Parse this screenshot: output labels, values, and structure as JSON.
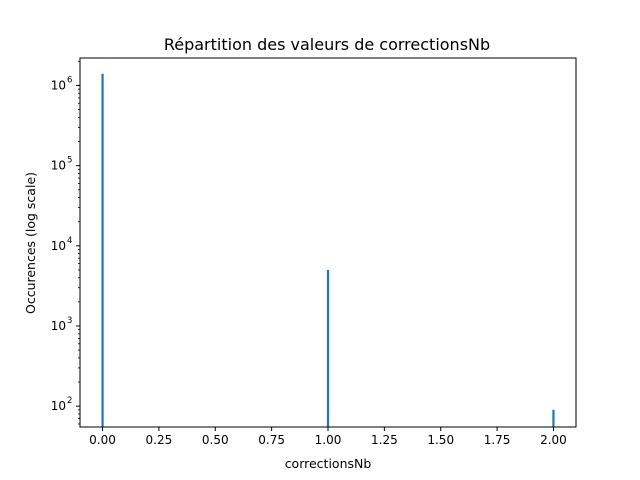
{
  "chart_data": {
    "type": "bar",
    "title": "Répartition des valeurs de correctionsNb",
    "xlabel": "correctionsNb",
    "ylabel": "Occurences (log scale)",
    "yscale": "log",
    "x": [
      0.0,
      1.0,
      2.0
    ],
    "values": [
      1400000,
      5000,
      90
    ],
    "xlim": [
      -0.1,
      2.1
    ],
    "ylim": [
      55,
      2200000
    ],
    "x_ticks": [
      "0.00",
      "0.25",
      "0.50",
      "0.75",
      "1.00",
      "1.25",
      "1.50",
      "1.75",
      "2.00"
    ],
    "y_ticks": [
      {
        "base": "10",
        "exp": "2",
        "value": 100
      },
      {
        "base": "10",
        "exp": "3",
        "value": 1000
      },
      {
        "base": "10",
        "exp": "4",
        "value": 10000
      },
      {
        "base": "10",
        "exp": "5",
        "value": 100000
      },
      {
        "base": "10",
        "exp": "6",
        "value": 1000000
      }
    ],
    "bar_color": "#1f77b4",
    "grid": false,
    "legend": "none"
  }
}
